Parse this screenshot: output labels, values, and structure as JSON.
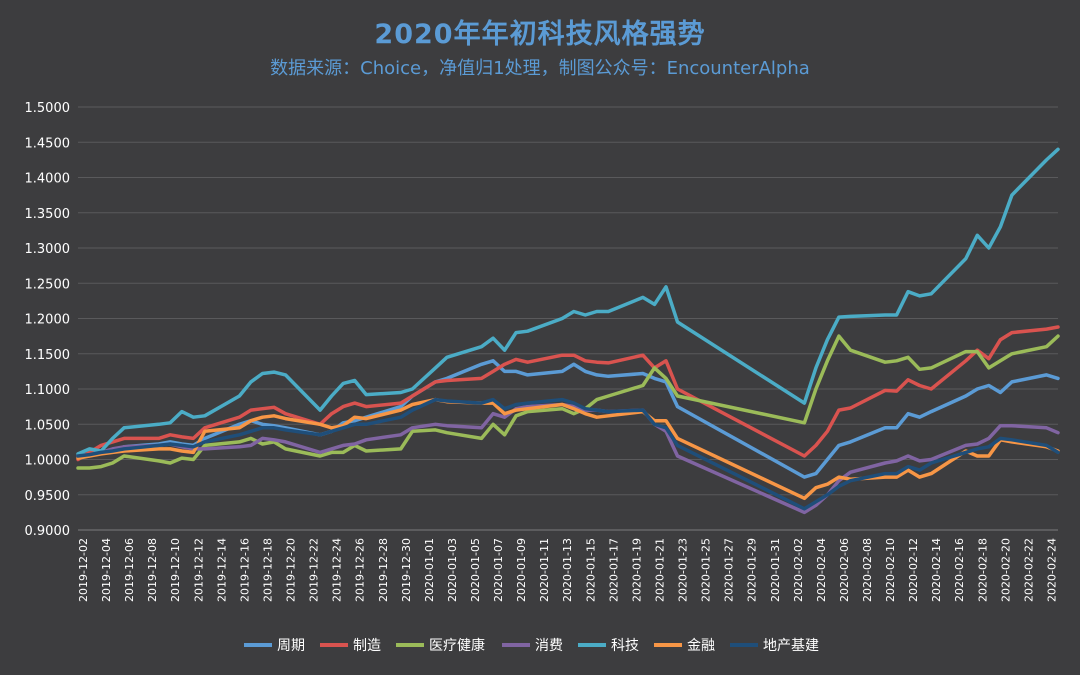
{
  "chart_data": {
    "type": "line",
    "title": "2020年年初科技风格强势",
    "subtitle": "数据来源：Choice，净值归1处理，制图公众号：EncounterAlpha",
    "ylim": [
      0.9,
      1.5
    ],
    "yticks": [
      "0.9000",
      "0.9500",
      "1.0000",
      "1.0500",
      "1.1000",
      "1.1500",
      "1.2000",
      "1.2500",
      "1.3000",
      "1.3500",
      "1.4000",
      "1.4500",
      "1.5000"
    ],
    "grid": true,
    "legend_position": "bottom",
    "x": [
      "2019-12-02",
      "2019-12-03",
      "2019-12-04",
      "2019-12-05",
      "2019-12-06",
      "2019-12-09",
      "2019-12-10",
      "2019-12-11",
      "2019-12-12",
      "2019-12-13",
      "2019-12-16",
      "2019-12-17",
      "2019-12-18",
      "2019-12-19",
      "2019-12-20",
      "2019-12-23",
      "2019-12-24",
      "2019-12-25",
      "2019-12-26",
      "2019-12-27",
      "2019-12-30",
      "2019-12-31",
      "2020-01-02",
      "2020-01-03",
      "2020-01-06",
      "2020-01-07",
      "2020-01-08",
      "2020-01-09",
      "2020-01-10",
      "2020-01-13",
      "2020-01-14",
      "2020-01-15",
      "2020-01-16",
      "2020-01-17",
      "2020-01-20",
      "2020-01-21",
      "2020-01-22",
      "2020-01-23",
      "2020-02-03",
      "2020-02-04",
      "2020-02-05",
      "2020-02-06",
      "2020-02-07",
      "2020-02-10",
      "2020-02-11",
      "2020-02-12",
      "2020-02-13",
      "2020-02-14",
      "2020-02-17",
      "2020-02-18",
      "2020-02-19",
      "2020-02-20",
      "2020-02-21",
      "2020-02-24",
      "2020-02-25"
    ],
    "x_tick_labels": [
      "2019-12-02",
      "2019-12-04",
      "2019-12-06",
      "2019-12-08",
      "2019-12-10",
      "2019-12-12",
      "2019-12-14",
      "2019-12-16",
      "2019-12-18",
      "2019-12-20",
      "2019-12-22",
      "2019-12-24",
      "2019-12-26",
      "2019-12-28",
      "2019-12-30",
      "2020-01-01",
      "2020-01-03",
      "2020-01-05",
      "2020-01-07",
      "2020-01-09",
      "2020-01-11",
      "2020-01-13",
      "2020-01-15",
      "2020-01-17",
      "2020-01-19",
      "2020-01-21",
      "2020-01-23",
      "2020-01-25",
      "2020-01-27",
      "2020-01-29",
      "2020-01-31",
      "2020-02-02",
      "2020-02-04",
      "2020-02-06",
      "2020-02-08",
      "2020-02-10",
      "2020-02-12",
      "2020-02-14",
      "2020-02-16",
      "2020-02-18",
      "2020-02-20",
      "2020-02-22",
      "2020-02-24"
    ],
    "series": [
      {
        "name": "周期",
        "color": "#5b9bd5",
        "values": [
          1.005,
          1.008,
          1.01,
          1.012,
          1.018,
          1.022,
          1.025,
          1.022,
          1.02,
          1.03,
          1.05,
          1.055,
          1.05,
          1.048,
          1.045,
          1.035,
          1.04,
          1.052,
          1.055,
          1.06,
          1.075,
          1.09,
          1.11,
          1.115,
          1.135,
          1.14,
          1.125,
          1.125,
          1.12,
          1.125,
          1.135,
          1.125,
          1.12,
          1.118,
          1.122,
          1.115,
          1.11,
          1.075,
          0.975,
          0.98,
          1.0,
          1.02,
          1.025,
          1.045,
          1.045,
          1.065,
          1.06,
          1.068,
          1.09,
          1.1,
          1.105,
          1.095,
          1.11,
          1.12,
          1.115
        ]
      },
      {
        "name": "制造",
        "color": "#d9534f",
        "values": [
          1.0,
          1.01,
          1.02,
          1.025,
          1.03,
          1.03,
          1.035,
          1.032,
          1.03,
          1.045,
          1.06,
          1.07,
          1.072,
          1.074,
          1.065,
          1.05,
          1.065,
          1.075,
          1.08,
          1.075,
          1.08,
          1.09,
          1.11,
          1.112,
          1.115,
          1.125,
          1.135,
          1.142,
          1.138,
          1.148,
          1.148,
          1.14,
          1.138,
          1.137,
          1.148,
          1.13,
          1.14,
          1.1,
          1.005,
          1.02,
          1.04,
          1.07,
          1.073,
          1.098,
          1.097,
          1.113,
          1.105,
          1.1,
          1.14,
          1.155,
          1.143,
          1.17,
          1.18,
          1.185,
          1.188
        ]
      },
      {
        "name": "医疗健康",
        "color": "#9bbb59",
        "values": [
          0.988,
          0.988,
          0.99,
          0.995,
          1.005,
          0.998,
          0.995,
          1.002,
          1.0,
          1.02,
          1.025,
          1.03,
          1.022,
          1.025,
          1.015,
          1.005,
          1.01,
          1.01,
          1.02,
          1.012,
          1.015,
          1.04,
          1.042,
          1.038,
          1.03,
          1.05,
          1.035,
          1.062,
          1.068,
          1.072,
          1.065,
          1.072,
          1.085,
          1.09,
          1.105,
          1.13,
          1.115,
          1.09,
          1.052,
          1.1,
          1.14,
          1.175,
          1.155,
          1.138,
          1.14,
          1.145,
          1.128,
          1.13,
          1.153,
          1.153,
          1.13,
          1.14,
          1.15,
          1.16,
          1.175
        ]
      },
      {
        "name": "消费",
        "color": "#8064a2",
        "values": [
          1.005,
          1.005,
          1.01,
          1.015,
          1.018,
          1.02,
          1.022,
          1.018,
          1.015,
          1.015,
          1.018,
          1.02,
          1.03,
          1.028,
          1.025,
          1.01,
          1.015,
          1.02,
          1.022,
          1.028,
          1.035,
          1.045,
          1.05,
          1.048,
          1.045,
          1.065,
          1.06,
          1.072,
          1.075,
          1.078,
          1.075,
          1.07,
          1.07,
          1.068,
          1.07,
          1.05,
          1.04,
          1.005,
          0.925,
          0.935,
          0.95,
          0.97,
          0.982,
          0.995,
          0.998,
          1.005,
          0.998,
          1.0,
          1.02,
          1.022,
          1.03,
          1.048,
          1.048,
          1.045,
          1.038
        ]
      },
      {
        "name": "科技",
        "color": "#4bacc6",
        "values": [
          1.008,
          1.015,
          1.012,
          1.03,
          1.045,
          1.05,
          1.052,
          1.068,
          1.06,
          1.062,
          1.09,
          1.11,
          1.122,
          1.124,
          1.12,
          1.07,
          1.09,
          1.108,
          1.112,
          1.092,
          1.095,
          1.1,
          1.13,
          1.145,
          1.16,
          1.172,
          1.155,
          1.18,
          1.182,
          1.2,
          1.21,
          1.205,
          1.21,
          1.21,
          1.23,
          1.22,
          1.245,
          1.195,
          1.08,
          1.13,
          1.17,
          1.202,
          1.203,
          1.205,
          1.205,
          1.238,
          1.232,
          1.235,
          1.285,
          1.318,
          1.3,
          1.33,
          1.375,
          1.425,
          1.44
        ]
      },
      {
        "name": "金融",
        "color": "#f79646",
        "values": [
          1.002,
          1.005,
          1.008,
          1.01,
          1.012,
          1.015,
          1.015,
          1.012,
          1.01,
          1.04,
          1.045,
          1.055,
          1.06,
          1.062,
          1.058,
          1.05,
          1.045,
          1.048,
          1.06,
          1.058,
          1.07,
          1.078,
          1.085,
          1.082,
          1.08,
          1.08,
          1.065,
          1.07,
          1.072,
          1.078,
          1.072,
          1.065,
          1.06,
          1.062,
          1.068,
          1.055,
          1.055,
          1.03,
          0.945,
          0.96,
          0.965,
          0.975,
          0.972,
          0.975,
          0.975,
          0.985,
          0.975,
          0.98,
          1.012,
          1.005,
          1.005,
          1.028,
          1.025,
          1.018,
          1.012
        ]
      },
      {
        "name": "地产基建",
        "color": "#1f4e79",
        "values": [
          1.005,
          1.007,
          1.01,
          1.012,
          1.015,
          1.02,
          1.022,
          1.02,
          1.018,
          1.025,
          1.035,
          1.04,
          1.045,
          1.045,
          1.042,
          1.035,
          1.04,
          1.045,
          1.05,
          1.05,
          1.06,
          1.07,
          1.085,
          1.083,
          1.08,
          1.085,
          1.072,
          1.078,
          1.08,
          1.085,
          1.08,
          1.072,
          1.07,
          1.068,
          1.07,
          1.05,
          1.045,
          1.02,
          0.93,
          0.94,
          0.95,
          0.962,
          0.97,
          0.98,
          0.98,
          0.99,
          0.985,
          0.995,
          1.01,
          1.015,
          1.018,
          1.03,
          1.028,
          1.02,
          1.01
        ]
      }
    ]
  }
}
